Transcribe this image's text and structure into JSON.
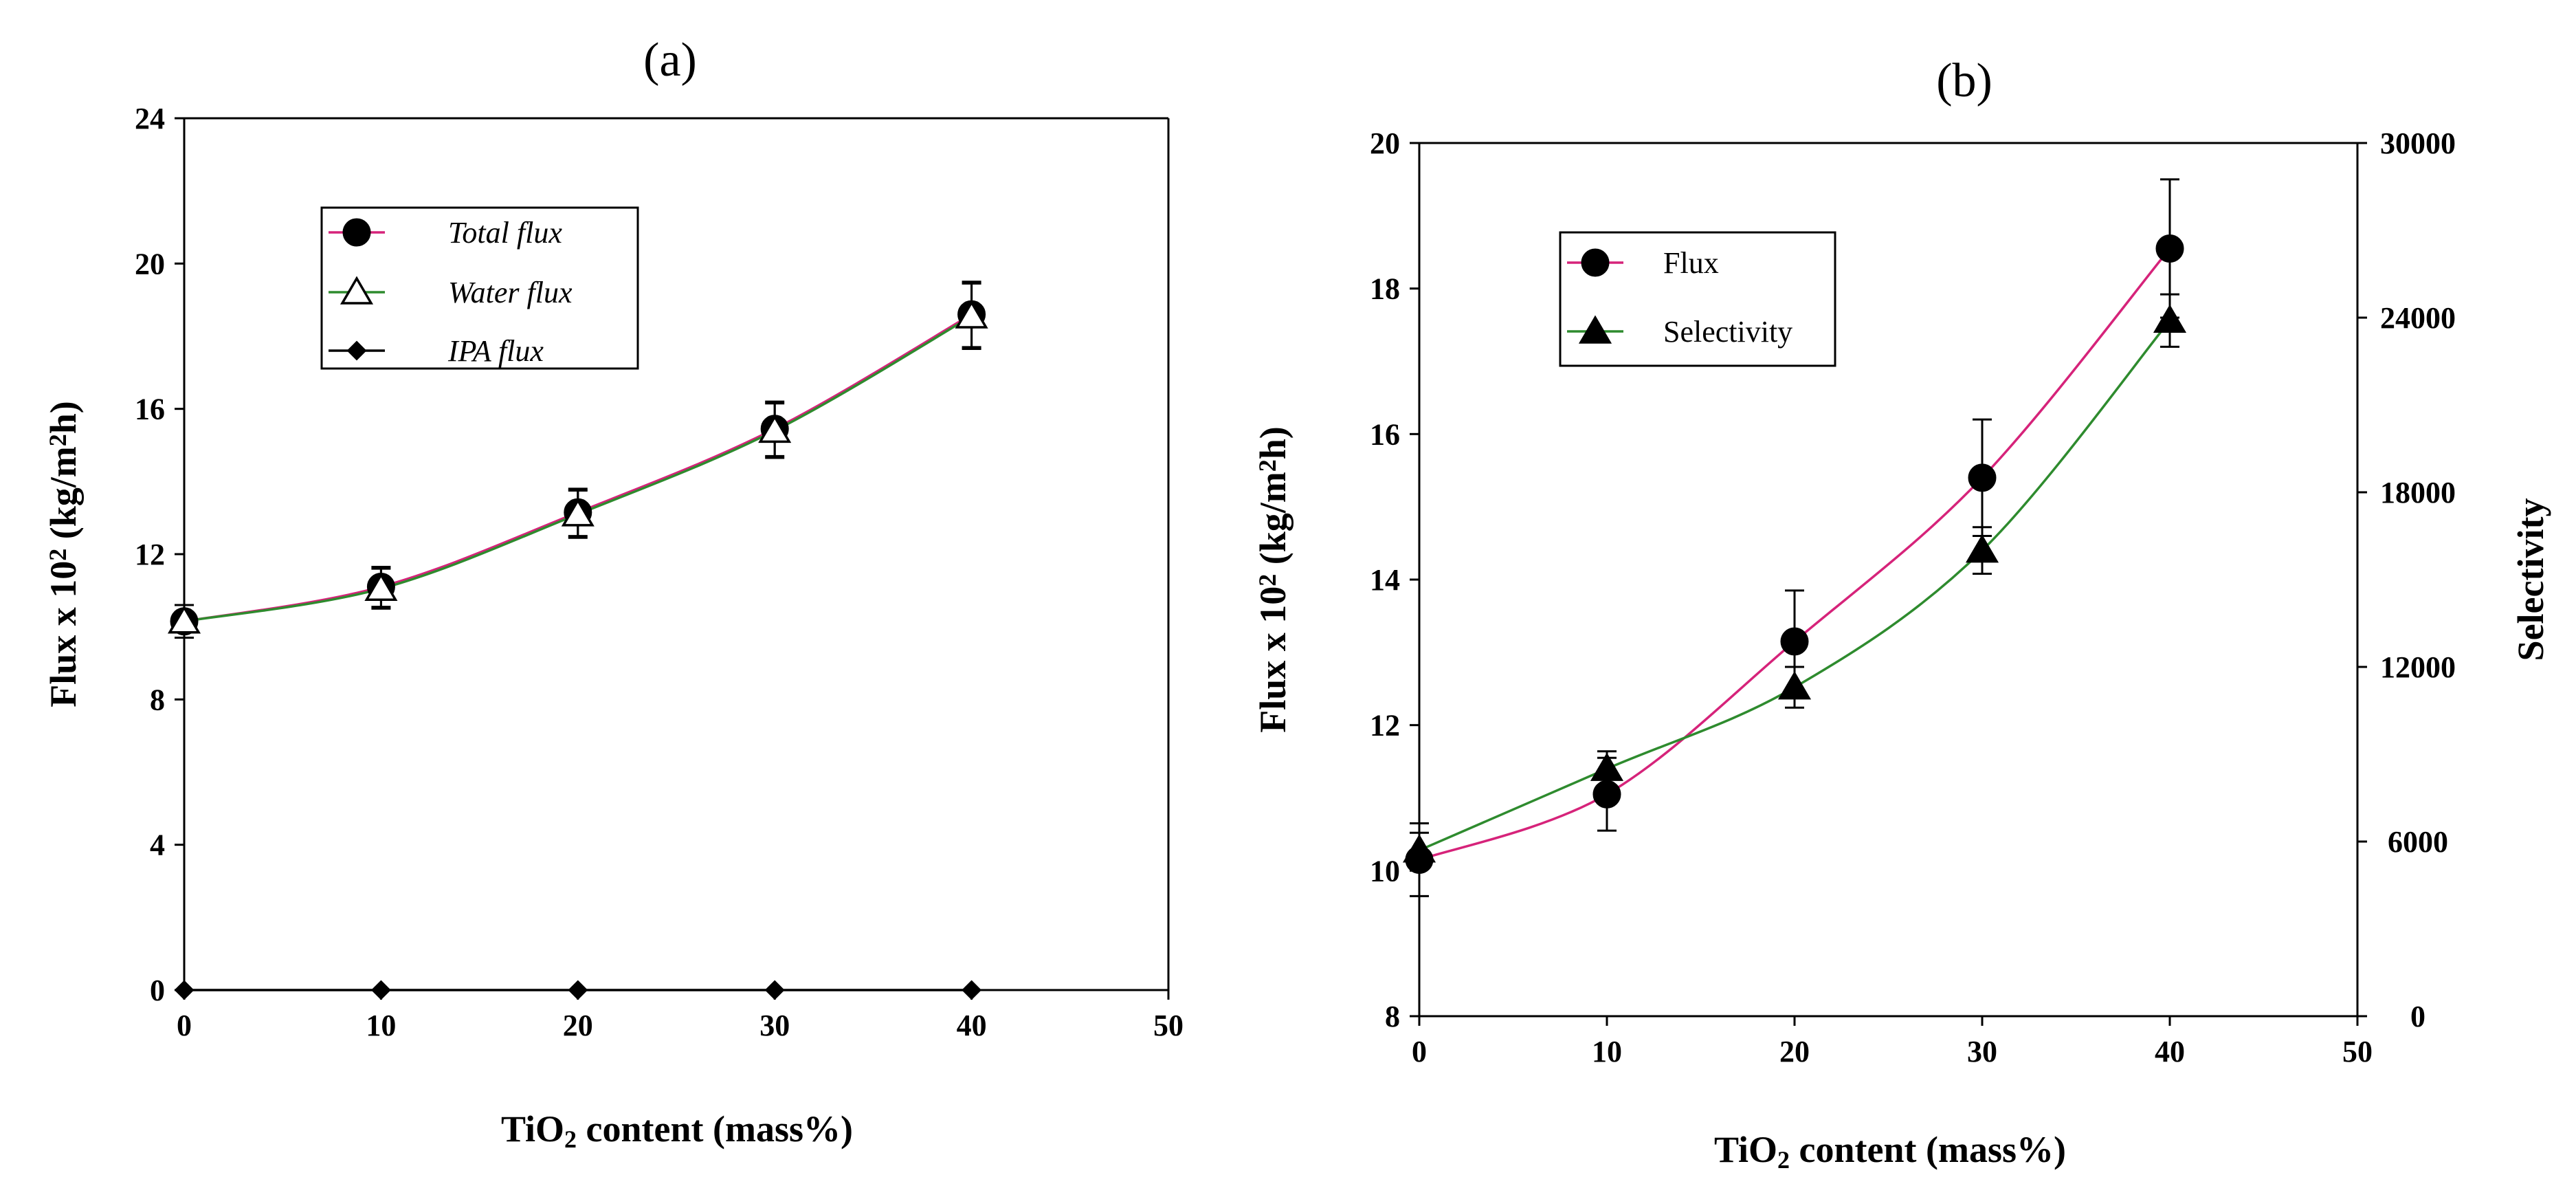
{
  "chart_data": [
    {
      "panel": "(a)",
      "type": "line",
      "title": "(a)",
      "xlabel": [
        "TiO",
        "2",
        " content (mass%)"
      ],
      "ylabel": [
        "Flux x 10",
        "2",
        " (kg/m",
        "2",
        "h)"
      ],
      "x": [
        0,
        10,
        20,
        30,
        40
      ],
      "xlim": [
        0,
        50
      ],
      "xticks": [
        "0",
        "10",
        "20",
        "30",
        "40",
        "50"
      ],
      "ylim": [
        0,
        24
      ],
      "yticks": [
        "0",
        "4",
        "8",
        "12",
        "16",
        "20",
        "24"
      ],
      "legend_position": "upper-left",
      "series": [
        {
          "name": "Total flux",
          "values": [
            10.15,
            11.1,
            13.15,
            15.45,
            18.6
          ],
          "errors": [
            0.45,
            0.55,
            0.65,
            0.75,
            0.9
          ],
          "color": "#d6237a",
          "marker": "circle-filled"
        },
        {
          "name": "Water flux",
          "values": [
            10.15,
            11.05,
            13.1,
            15.4,
            18.55
          ],
          "errors": [
            0.45,
            0.55,
            0.65,
            0.75,
            0.9
          ],
          "color": "#2e8b2e",
          "marker": "triangle-open"
        },
        {
          "name": "IPA flux",
          "values": [
            0,
            0,
            0,
            0,
            0
          ],
          "errors": [
            0,
            0,
            0,
            0,
            0
          ],
          "color": "#000000",
          "marker": "diamond-filled"
        }
      ]
    },
    {
      "panel": "(b)",
      "type": "line",
      "title": "(b)",
      "xlabel": [
        "TiO",
        "2",
        " content (mass%)"
      ],
      "ylabel": [
        "Flux x 10",
        "2",
        " (kg/m",
        "2",
        "h)"
      ],
      "y2label": "Selectivity",
      "x": [
        0,
        10,
        20,
        30,
        40
      ],
      "xlim": [
        0,
        50
      ],
      "xticks": [
        "0",
        "10",
        "20",
        "30",
        "40",
        "50"
      ],
      "ylim": [
        8,
        20
      ],
      "yticks": [
        "8",
        "10",
        "12",
        "14",
        "16",
        "18",
        "20"
      ],
      "y2lim": [
        0,
        30000
      ],
      "y2ticks": [
        "0",
        "6000",
        "12000",
        "18000",
        "24000",
        "30000"
      ],
      "legend_position": "upper-left",
      "series": [
        {
          "name": "Flux",
          "axis": "left",
          "values": [
            10.15,
            11.05,
            13.15,
            15.4,
            18.55
          ],
          "errors": [
            0.5,
            0.5,
            0.7,
            0.8,
            0.95
          ],
          "color": "#d6237a",
          "marker": "circle-filled"
        },
        {
          "name": "Selectivity",
          "axis": "right",
          "values": [
            5700,
            8500,
            11300,
            16000,
            23900
          ],
          "errors": [
            600,
            600,
            700,
            800,
            900
          ],
          "color": "#2e8b2e",
          "marker": "triangle-filled"
        }
      ]
    }
  ]
}
